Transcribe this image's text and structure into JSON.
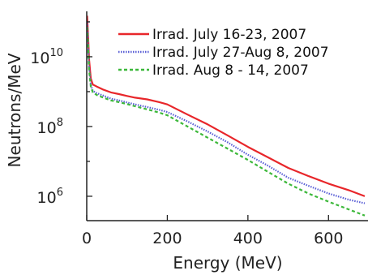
{
  "chart_data": {
    "type": "line",
    "xlabel": "Energy (MeV)",
    "ylabel": "Neutrons/MeV",
    "y_scale": "log",
    "xlim": [
      0,
      700
    ],
    "ylim": [
      200000,
      200000000000.0
    ],
    "x_ticks": [
      {
        "value": 0,
        "label": "0"
      },
      {
        "value": 200,
        "label": "200"
      },
      {
        "value": 400,
        "label": "400"
      },
      {
        "value": 600,
        "label": "600"
      }
    ],
    "y_ticks": [
      {
        "value": 1000000,
        "base": "10",
        "exp": "6"
      },
      {
        "value": 100000000,
        "base": "10",
        "exp": "8"
      },
      {
        "value": 10000000000,
        "base": "10",
        "exp": "10"
      }
    ],
    "legend_position": "top-right",
    "grid": false,
    "series": [
      {
        "name": "Irrad.  July 16-23, 2007",
        "color": "#e8262a",
        "style": "solid",
        "points": [
          [
            1,
            150000000000.0
          ],
          [
            3,
            50000000000.0
          ],
          [
            6,
            8000000000.0
          ],
          [
            10,
            2400000000.0
          ],
          [
            15,
            1600000000.0
          ],
          [
            25,
            1400000000.0
          ],
          [
            40,
            1150000000.0
          ],
          [
            60,
            950000000.0
          ],
          [
            80,
            850000000.0
          ],
          [
            100,
            750000000.0
          ],
          [
            120,
            670000000.0
          ],
          [
            150,
            600000000.0
          ],
          [
            180,
            500000000.0
          ],
          [
            200,
            430000000.0
          ],
          [
            250,
            220000000.0
          ],
          [
            300,
            115000000.0
          ],
          [
            350,
            55000000.0
          ],
          [
            400,
            26000000.0
          ],
          [
            450,
            13000000.0
          ],
          [
            500,
            6500000.0
          ],
          [
            550,
            3800000.0
          ],
          [
            600,
            2300000.0
          ],
          [
            650,
            1500000.0
          ],
          [
            690,
            1000000.0
          ]
        ]
      },
      {
        "name": "Irrad. July 27-Aug 8, 2007",
        "color": "#5a5fd6",
        "style": "dotted",
        "points": [
          [
            1,
            100000000000.0
          ],
          [
            3,
            35000000000.0
          ],
          [
            6,
            5000000000.0
          ],
          [
            10,
            1600000000.0
          ],
          [
            15,
            1050000000.0
          ],
          [
            25,
            900000000.0
          ],
          [
            40,
            780000000.0
          ],
          [
            60,
            630000000.0
          ],
          [
            80,
            560000000.0
          ],
          [
            100,
            490000000.0
          ],
          [
            120,
            430000000.0
          ],
          [
            150,
            360000000.0
          ],
          [
            180,
            300000000.0
          ],
          [
            200,
            260000000.0
          ],
          [
            250,
            140000000.0
          ],
          [
            300,
            72000000.0
          ],
          [
            350,
            35000000.0
          ],
          [
            400,
            15500000.0
          ],
          [
            450,
            7500000.0
          ],
          [
            500,
            3400000.0
          ],
          [
            550,
            2000000.0
          ],
          [
            600,
            1200000.0
          ],
          [
            650,
            800000.0
          ],
          [
            690,
            630000.0
          ]
        ]
      },
      {
        "name": "Irrad. Aug 8 - 14, 2007",
        "color": "#3cb83a",
        "style": "dashed",
        "points": [
          [
            1,
            70000000000.0
          ],
          [
            3,
            25000000000.0
          ],
          [
            6,
            4000000000.0
          ],
          [
            10,
            1400000000.0
          ],
          [
            15,
            950000000.0
          ],
          [
            25,
            800000000.0
          ],
          [
            40,
            680000000.0
          ],
          [
            60,
            560000000.0
          ],
          [
            80,
            500000000.0
          ],
          [
            100,
            440000000.0
          ],
          [
            120,
            380000000.0
          ],
          [
            150,
            310000000.0
          ],
          [
            180,
            250000000.0
          ],
          [
            200,
            210000000.0
          ],
          [
            250,
            100000000.0
          ],
          [
            300,
            48000000.0
          ],
          [
            350,
            23000000.0
          ],
          [
            400,
            11000000.0
          ],
          [
            450,
            5000000.0
          ],
          [
            500,
            2300000.0
          ],
          [
            550,
            1200000.0
          ],
          [
            600,
            700000.0
          ],
          [
            650,
            420000.0
          ],
          [
            690,
            280000.0
          ]
        ]
      }
    ]
  }
}
